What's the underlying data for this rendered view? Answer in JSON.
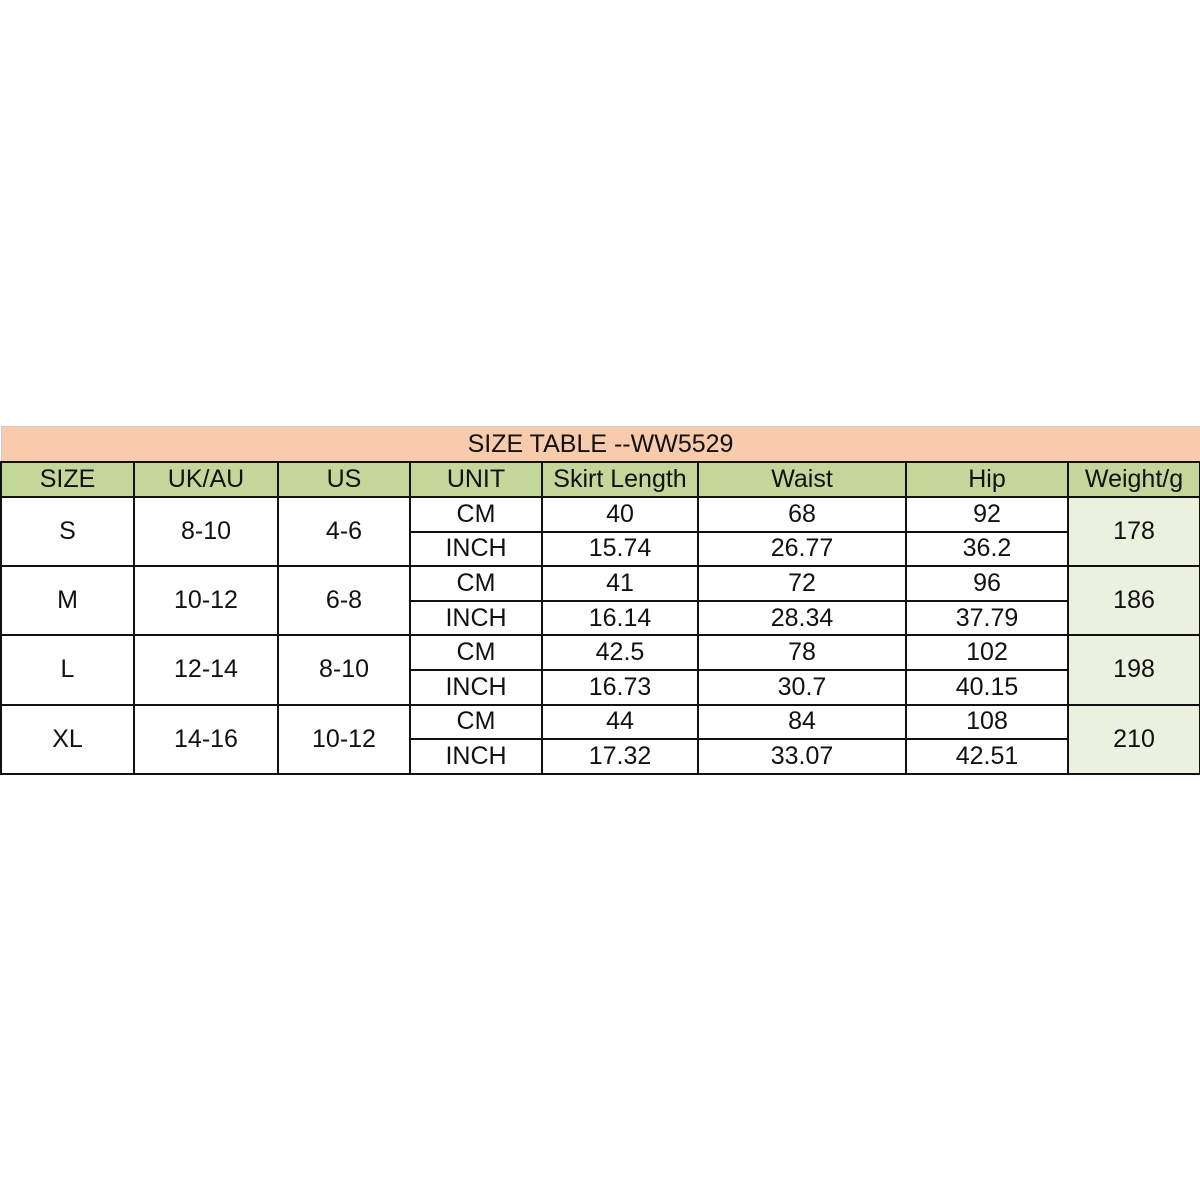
{
  "title": "SIZE TABLE --WW5529",
  "colors": {
    "title_bg": "#f8cbad",
    "header_bg": "#c4d79b",
    "weight_bg": "#ebf1de",
    "border": "#111111"
  },
  "headers": [
    "SIZE",
    "UK/AU",
    "US",
    "UNIT",
    "Skirt Length",
    "Waist",
    "Hip",
    "Weight/g"
  ],
  "rows": [
    {
      "size": "S",
      "uk_au": "8-10",
      "us": "4-6",
      "weight": "178",
      "units": [
        {
          "unit": "CM",
          "skirt_length": "40",
          "waist": "68",
          "hip": "92"
        },
        {
          "unit": "INCH",
          "skirt_length": "15.74",
          "waist": "26.77",
          "hip": "36.2"
        }
      ]
    },
    {
      "size": "M",
      "uk_au": "10-12",
      "us": "6-8",
      "weight": "186",
      "units": [
        {
          "unit": "CM",
          "skirt_length": "41",
          "waist": "72",
          "hip": "96"
        },
        {
          "unit": "INCH",
          "skirt_length": "16.14",
          "waist": "28.34",
          "hip": "37.79"
        }
      ]
    },
    {
      "size": "L",
      "uk_au": "12-14",
      "us": "8-10",
      "weight": "198",
      "units": [
        {
          "unit": "CM",
          "skirt_length": "42.5",
          "waist": "78",
          "hip": "102"
        },
        {
          "unit": "INCH",
          "skirt_length": "16.73",
          "waist": "30.7",
          "hip": "40.15"
        }
      ]
    },
    {
      "size": "XL",
      "uk_au": "14-16",
      "us": "10-12",
      "weight": "210",
      "units": [
        {
          "unit": "CM",
          "skirt_length": "44",
          "waist": "84",
          "hip": "108"
        },
        {
          "unit": "INCH",
          "skirt_length": "17.32",
          "waist": "33.07",
          "hip": "42.51"
        }
      ]
    }
  ]
}
